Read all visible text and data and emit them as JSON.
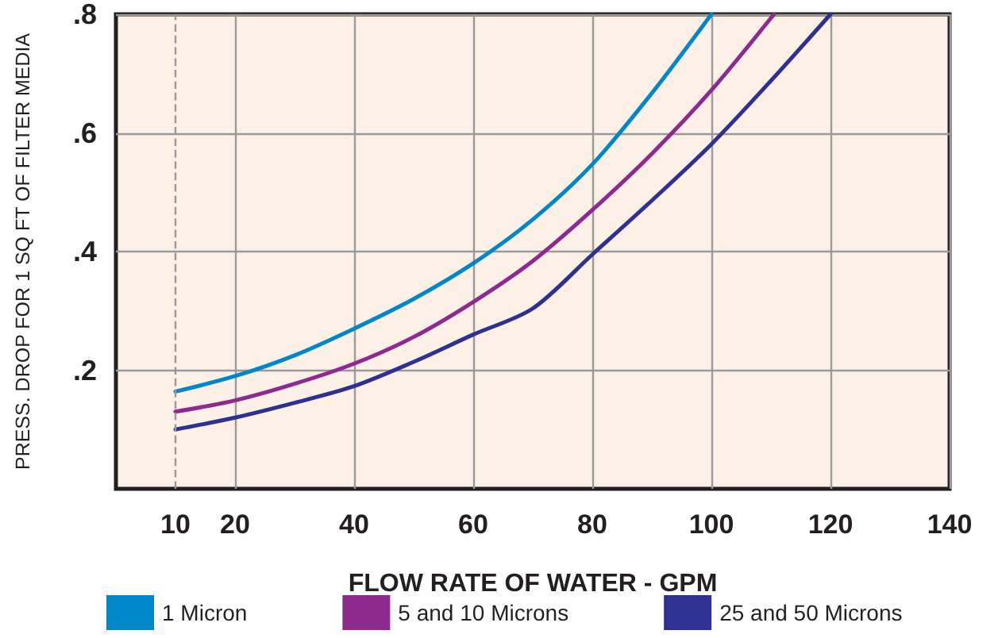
{
  "chart_data": {
    "type": "line",
    "xlabel": "FLOW RATE OF WATER - GPM",
    "ylabel": "PRESS. DROP FOR 1 SQ FT OF FILTER MEDIA",
    "series": [
      {
        "name": "1 Micron",
        "color": "#0087c9",
        "x": [
          10,
          20,
          30,
          40,
          50,
          60,
          70,
          80,
          90,
          100
        ],
        "values": [
          0.164,
          0.19,
          0.225,
          0.27,
          0.32,
          0.38,
          0.454,
          0.547,
          0.667,
          0.8
        ]
      },
      {
        "name": "5 and 10 Microns",
        "color": "#8e2a8f",
        "x": [
          10,
          20,
          30,
          40,
          50,
          60,
          70,
          80,
          90,
          100,
          110.5
        ],
        "values": [
          0.13,
          0.149,
          0.177,
          0.211,
          0.256,
          0.315,
          0.384,
          0.47,
          0.565,
          0.672,
          0.8
        ]
      },
      {
        "name": "25 and 50 Microns",
        "color": "#2e3192",
        "x": [
          10,
          20,
          30,
          40,
          50,
          60,
          70,
          80,
          90,
          100,
          110,
          120
        ],
        "values": [
          0.1,
          0.12,
          0.145,
          0.173,
          0.214,
          0.26,
          0.304,
          0.395,
          0.486,
          0.581,
          0.688,
          0.8
        ]
      }
    ],
    "xlim": [
      0,
      140
    ],
    "xticks": [
      10,
      20,
      40,
      60,
      80,
      100,
      120,
      140
    ],
    "ylim": [
      0,
      0.8
    ],
    "yticks": [
      {
        "value": 0.2,
        "label": ".2"
      },
      {
        "value": 0.4,
        "label": ".4"
      },
      {
        "value": 0.6,
        "label": ".6"
      },
      {
        "value": 0.8,
        "label": ".8"
      }
    ],
    "ref_lines": [
      {
        "axis": "x",
        "value": 10,
        "color": "#999999",
        "line_style": "dashed"
      }
    ],
    "grid": true,
    "legend": "bottom",
    "marker": "none",
    "line_style": "solid"
  }
}
